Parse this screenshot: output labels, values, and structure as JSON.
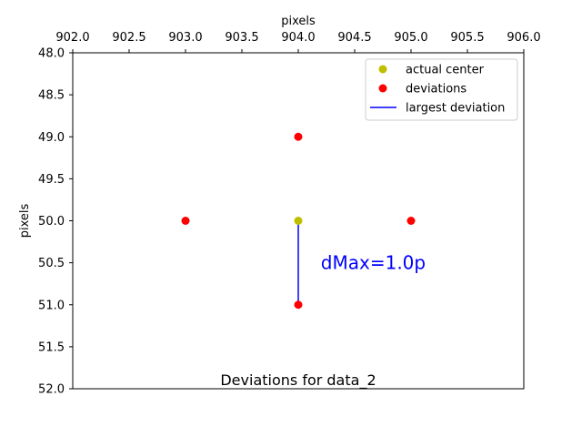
{
  "chart_data": {
    "type": "scatter",
    "title": "Deviations for data_2",
    "xlabel": "pixels",
    "ylabel": "pixels",
    "xlim": [
      902.0,
      906.0
    ],
    "ylim": [
      48.0,
      52.0
    ],
    "y_inverted": true,
    "x_axis_position": "top",
    "grid": false,
    "legend_position": "top-right",
    "x_ticks": [
      "902.0",
      "902.5",
      "903.0",
      "903.5",
      "904.0",
      "904.5",
      "905.0",
      "905.5",
      "906.0"
    ],
    "y_ticks": [
      "48.0",
      "48.5",
      "49.0",
      "49.5",
      "50.0",
      "50.5",
      "51.0",
      "51.5",
      "52.0"
    ],
    "series": [
      {
        "name": "actual center",
        "type": "scatter",
        "color": "#bfbf00",
        "points": [
          {
            "x": 904.0,
            "y": 50.0
          }
        ]
      },
      {
        "name": "deviations",
        "type": "scatter",
        "color": "#ff0000",
        "points": [
          {
            "x": 904.0,
            "y": 49.0
          },
          {
            "x": 903.0,
            "y": 50.0
          },
          {
            "x": 905.0,
            "y": 50.0
          },
          {
            "x": 904.0,
            "y": 51.0
          }
        ]
      },
      {
        "name": "largest deviation",
        "type": "line",
        "color": "#0000ff",
        "points": [
          {
            "x": 904.0,
            "y": 50.0
          },
          {
            "x": 904.0,
            "y": 51.0
          }
        ]
      }
    ],
    "annotation": {
      "text": "dMax=1.0p",
      "x": 904.2,
      "y": 50.5,
      "color": "#0000ff"
    }
  }
}
